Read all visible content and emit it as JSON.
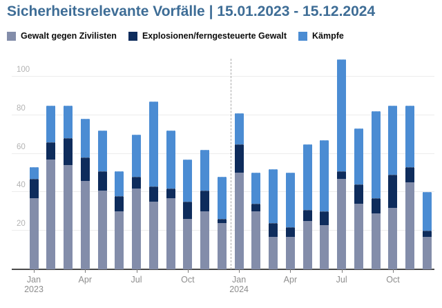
{
  "title": "Sicherheitsrelevante Vorfälle | 15.01.2023 - 15.12.2024",
  "colors": {
    "title": "#3e6d96",
    "civilians": "#838daa",
    "explosions": "#0e2c5c",
    "battles": "#4b8cd3",
    "gridline": "#ececec",
    "axis_line": "#4a4a4a",
    "y_label": "#b3b3b3",
    "x_label": "#8d8d8d",
    "year_separator": "#a6a6a6"
  },
  "legend": [
    {
      "label": "Gewalt gegen Zivilisten",
      "color": "#838daa"
    },
    {
      "label": "Explosionen/ferngesteuerte Gewalt",
      "color": "#0e2c5c"
    },
    {
      "label": "Kämpfe",
      "color": "#4b8cd3"
    }
  ],
  "chart_data": {
    "type": "bar",
    "stacked": true,
    "title": "Sicherheitsrelevante Vorfälle | 15.01.2023 - 15.12.2024",
    "categories": [
      "2023-01",
      "2023-02",
      "2023-03",
      "2023-04",
      "2023-05",
      "2023-06",
      "2023-07",
      "2023-08",
      "2023-09",
      "2023-10",
      "2023-11",
      "2023-12",
      "2024-01",
      "2024-02",
      "2024-03",
      "2024-04",
      "2024-05",
      "2024-06",
      "2024-07",
      "2024-08",
      "2024-09",
      "2024-10",
      "2024-11",
      "2024-12"
    ],
    "series": [
      {
        "name": "Gewalt gegen Zivilisten",
        "color": "#838daa",
        "values": [
          37,
          57,
          54,
          46,
          41,
          30,
          42,
          35,
          37,
          26,
          30,
          24,
          50,
          30,
          17,
          17,
          25,
          23,
          47,
          34,
          29,
          32,
          45,
          17
        ]
      },
      {
        "name": "Explosionen/ferngesteuerte Gewalt",
        "color": "#0e2c5c",
        "values": [
          10,
          9,
          14,
          12,
          10,
          8,
          6,
          8,
          5,
          9,
          11,
          2,
          15,
          4,
          7,
          5,
          6,
          7,
          4,
          10,
          8,
          17,
          8,
          3
        ]
      },
      {
        "name": "Kämpfe",
        "color": "#4b8cd3",
        "values": [
          6,
          19,
          17,
          20,
          21,
          13,
          22,
          44,
          30,
          22,
          21,
          22,
          16,
          16,
          28,
          28,
          34,
          37,
          58,
          29,
          45,
          36,
          32,
          20
        ]
      }
    ],
    "totals": [
      53,
      85,
      85,
      78,
      72,
      51,
      70,
      87,
      72,
      57,
      62,
      48,
      81,
      50,
      52,
      50,
      65,
      67,
      109,
      73,
      82,
      85,
      85,
      40
    ],
    "ylabel": "",
    "xlabel": "",
    "yticks": [
      20,
      40,
      60,
      80,
      100
    ],
    "ylim": [
      0,
      110
    ],
    "grid": true,
    "legend_position": "top",
    "x_ticks": [
      {
        "month_index": 0,
        "label": "Jan",
        "year": "2023"
      },
      {
        "month_index": 3,
        "label": "Apr",
        "year": ""
      },
      {
        "month_index": 6,
        "label": "Jul",
        "year": ""
      },
      {
        "month_index": 9,
        "label": "Oct",
        "year": ""
      },
      {
        "month_index": 12,
        "label": "Jan",
        "year": "2024"
      },
      {
        "month_index": 15,
        "label": "Apr",
        "year": ""
      },
      {
        "month_index": 18,
        "label": "Jul",
        "year": ""
      },
      {
        "month_index": 21,
        "label": "Oct",
        "year": ""
      }
    ],
    "year_separator_after_index": 11
  }
}
